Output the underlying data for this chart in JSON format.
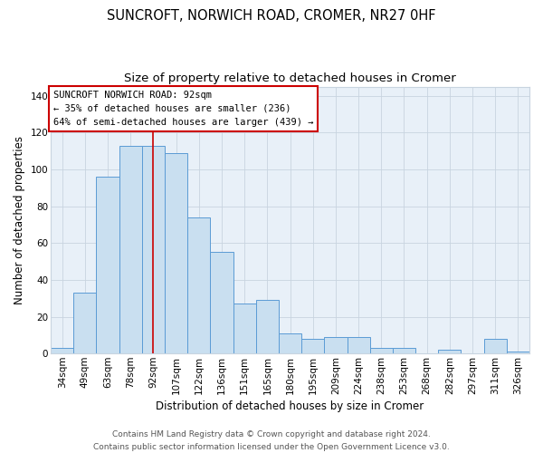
{
  "title": "SUNCROFT, NORWICH ROAD, CROMER, NR27 0HF",
  "subtitle": "Size of property relative to detached houses in Cromer",
  "xlabel": "Distribution of detached houses by size in Cromer",
  "ylabel": "Number of detached properties",
  "bar_labels": [
    "34sqm",
    "49sqm",
    "63sqm",
    "78sqm",
    "92sqm",
    "107sqm",
    "122sqm",
    "136sqm",
    "151sqm",
    "165sqm",
    "180sqm",
    "195sqm",
    "209sqm",
    "224sqm",
    "238sqm",
    "253sqm",
    "268sqm",
    "282sqm",
    "297sqm",
    "311sqm",
    "326sqm"
  ],
  "bar_values": [
    3,
    33,
    96,
    113,
    113,
    109,
    74,
    55,
    27,
    29,
    11,
    8,
    9,
    9,
    3,
    3,
    0,
    2,
    0,
    8,
    1
  ],
  "bar_color": "#c9dff0",
  "bar_edge_color": "#5b9bd5",
  "highlight_bar_index": 4,
  "red_line_color": "#cc0000",
  "ylim": [
    0,
    145
  ],
  "yticks": [
    0,
    20,
    40,
    60,
    80,
    100,
    120,
    140
  ],
  "annotation_title": "SUNCROFT NORWICH ROAD: 92sqm",
  "annotation_line1": "← 35% of detached houses are smaller (236)",
  "annotation_line2": "64% of semi-detached houses are larger (439) →",
  "annotation_box_color": "#ffffff",
  "annotation_box_edge": "#cc0000",
  "footer_line1": "Contains HM Land Registry data © Crown copyright and database right 2024.",
  "footer_line2": "Contains public sector information licensed under the Open Government Licence v3.0.",
  "background_color": "#ffffff",
  "plot_bg_color": "#e8f0f8",
  "grid_color": "#c8d4e0",
  "title_fontsize": 10.5,
  "subtitle_fontsize": 9.5,
  "axis_label_fontsize": 8.5,
  "tick_fontsize": 7.5,
  "annotation_fontsize": 7.5,
  "footer_fontsize": 6.5
}
